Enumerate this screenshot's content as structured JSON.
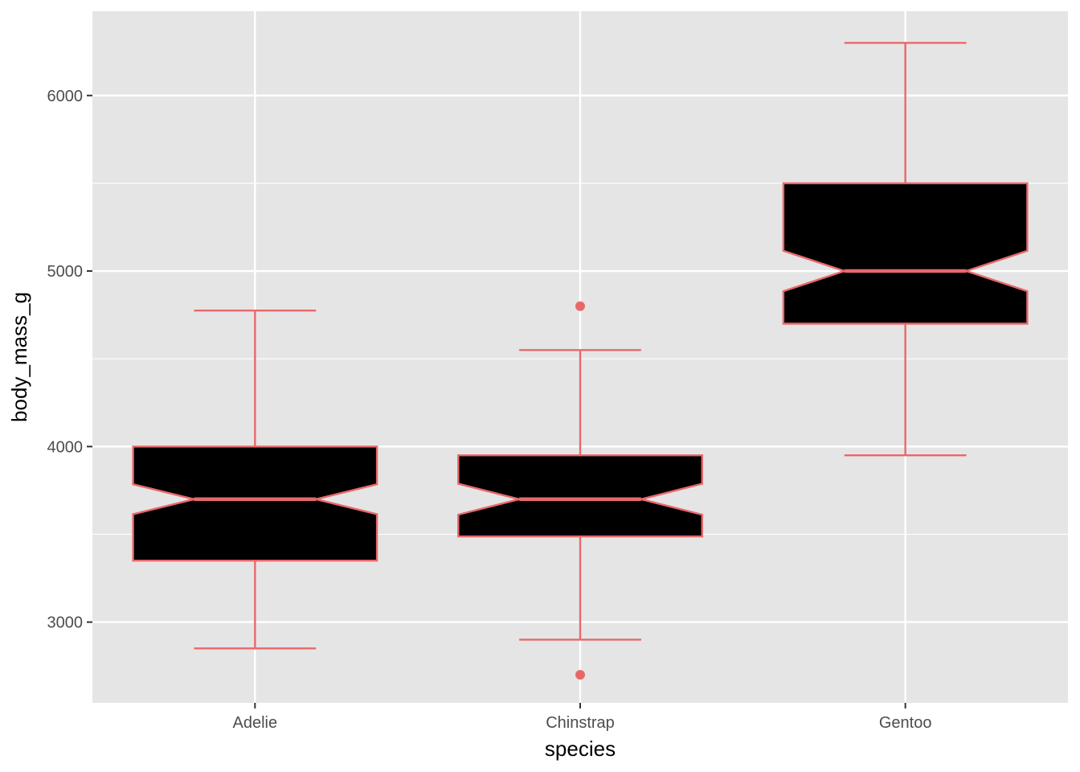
{
  "chart_data": {
    "type": "boxplot",
    "notched": true,
    "xlabel": "species",
    "ylabel": "body_mass_g",
    "categories": [
      "Adelie",
      "Chinstrap",
      "Gentoo"
    ],
    "ylim": [
      2540,
      6480
    ],
    "y_ticks": [
      3000,
      4000,
      5000,
      6000
    ],
    "y_minor_ticks": [
      3500,
      4500,
      5500
    ],
    "grid": true,
    "legend": "none",
    "colors": {
      "panel_background": "#e5e5e5",
      "grid": "#ffffff",
      "box_fill": "#000000",
      "box_outline": "#e8686a",
      "tick_text": "#4d4d4d",
      "axis_title_text": "#000000"
    },
    "boxes": [
      {
        "category": "Adelie",
        "whisker_low": 2850,
        "q1": 3350,
        "median": 3700,
        "q3": 4000,
        "whisker_high": 4775,
        "notch_low": 3615,
        "notch_high": 3785,
        "outliers": []
      },
      {
        "category": "Chinstrap",
        "whisker_low": 2900,
        "q1": 3488,
        "median": 3700,
        "q3": 3950,
        "whisker_high": 4550,
        "notch_low": 3612,
        "notch_high": 3788,
        "outliers": [
          4800,
          2700
        ]
      },
      {
        "category": "Gentoo",
        "whisker_low": 3950,
        "q1": 4700,
        "median": 5000,
        "q3": 5500,
        "whisker_high": 6300,
        "notch_low": 4885,
        "notch_high": 5115,
        "outliers": []
      }
    ]
  }
}
